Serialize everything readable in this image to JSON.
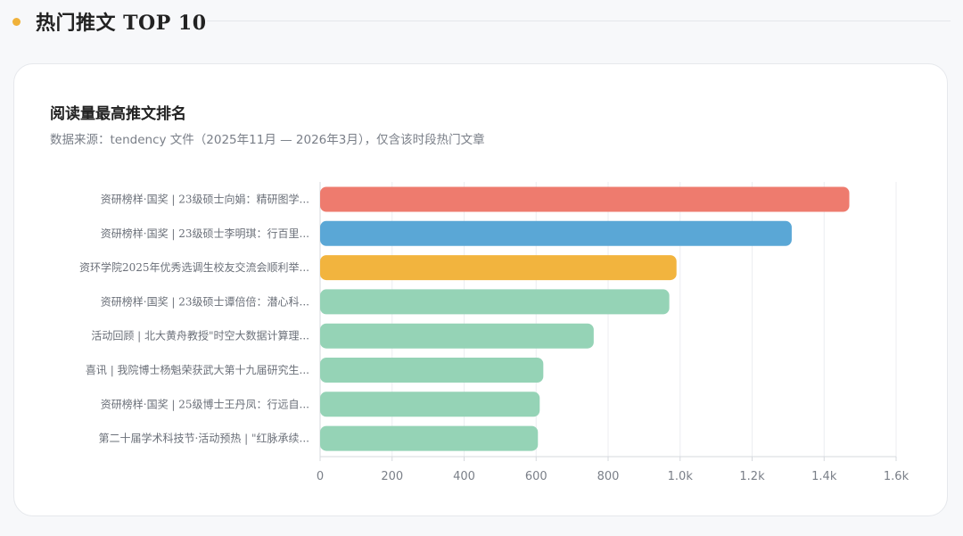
{
  "section": {
    "title": "热门推文 TOP 10"
  },
  "card": {
    "title": "阅读量最高推文排名",
    "subtitle": "数据来源：tendency 文件（2025年11月 — 2026年3月），仅含该时段热门文章"
  },
  "colors": {
    "accent_dot": "#f0b23a",
    "rank1": "#ee7b6e",
    "rank2": "#5aa7d6",
    "rank3": "#f2b43e",
    "rest": "#95d3b6"
  },
  "chart_data": {
    "type": "bar",
    "orientation": "horizontal",
    "categories": [
      "资研榜样·国奖 | 23级硕士向娟：精研图学...",
      "资研榜样·国奖 | 23级硕士李明琪：行百里...",
      "资环学院2025年优秀选调生校友交流会顺利举...",
      "资研榜样·国奖 | 23级硕士谭倍倍：潜心科...",
      "活动回顾 | 北大黄舟教授\"时空大数据计算理...",
      "喜讯 | 我院博士杨魁荣获武大第十九届研究生...",
      "资研榜样·国奖 | 25级博士王丹凤：行远自...",
      "第二十届学术科技节·活动预热 | \"红脉承续..."
    ],
    "values": [
      1470,
      1310,
      990,
      970,
      760,
      620,
      610,
      605
    ],
    "xlim": [
      0,
      1600
    ],
    "xticks": [
      0,
      200,
      400,
      600,
      800,
      1000,
      1200,
      1400,
      1600
    ],
    "xtick_labels": [
      "0",
      "200",
      "400",
      "600",
      "800",
      "1.0k",
      "1.2k",
      "1.4k",
      "1.6k"
    ],
    "bar_colors": [
      "#ee7b6e",
      "#5aa7d6",
      "#f2b43e",
      "#95d3b6",
      "#95d3b6",
      "#95d3b6",
      "#95d3b6",
      "#95d3b6"
    ],
    "grid": "vertical",
    "legend": "none"
  }
}
